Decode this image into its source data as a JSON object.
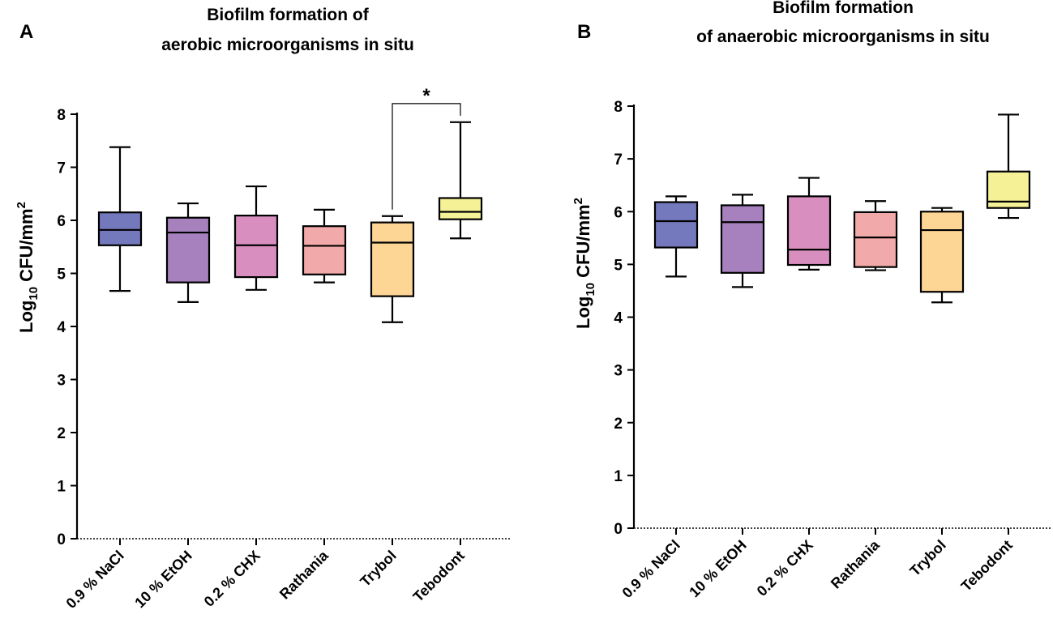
{
  "chart_data": [
    {
      "panel": "A",
      "type": "boxplot",
      "title": [
        "Biofilm formation of",
        "aerobic microorganisms in situ"
      ],
      "ylabel": {
        "main": "Log",
        "sub": "10",
        "rest": " CFU/mm",
        "sup": "2"
      },
      "ylim": [
        0,
        8
      ],
      "yticks": [
        0,
        1,
        2,
        3,
        4,
        5,
        6,
        7,
        8
      ],
      "categories": [
        "0.9 % NaCl",
        "10 % EtOH",
        "0.2 % CHX",
        "Rathania",
        "Trybol",
        "Tebodont"
      ],
      "colors": [
        "#7479bd",
        "#a681bd",
        "#d88fbf",
        "#f2a9a9",
        "#fdd595",
        "#f5f196"
      ],
      "boxes": [
        {
          "min": 4.67,
          "q1": 5.53,
          "median": 5.82,
          "q3": 6.15,
          "max": 7.38
        },
        {
          "min": 4.46,
          "q1": 4.83,
          "median": 5.77,
          "q3": 6.05,
          "max": 6.32
        },
        {
          "min": 4.69,
          "q1": 4.93,
          "median": 5.53,
          "q3": 6.09,
          "max": 6.64
        },
        {
          "min": 4.83,
          "q1": 4.98,
          "median": 5.52,
          "q3": 5.89,
          "max": 6.2
        },
        {
          "min": 4.08,
          "q1": 4.57,
          "median": 5.58,
          "q3": 5.96,
          "max": 6.08
        },
        {
          "min": 5.66,
          "q1": 6.02,
          "median": 6.16,
          "q3": 6.42,
          "max": 7.85
        }
      ],
      "significance": {
        "from": 4,
        "to": 5,
        "label": "*",
        "level": 8.2
      }
    },
    {
      "panel": "B",
      "type": "boxplot",
      "title": [
        "Biofilm formation",
        "of anaerobic microorganisms in situ"
      ],
      "ylabel": {
        "main": "Log",
        "sub": "10",
        "rest": " CFU/mm",
        "sup": "2"
      },
      "ylim": [
        0,
        8
      ],
      "yticks": [
        0,
        1,
        2,
        3,
        4,
        5,
        6,
        7,
        8
      ],
      "categories": [
        "0.9 % NaCl",
        "10 % EtOH",
        "0.2 % CHX",
        "Rathania",
        "Trybol",
        "Tebodont"
      ],
      "colors": [
        "#7479bd",
        "#a681bd",
        "#d88fbf",
        "#f2a9a9",
        "#fdd595",
        "#f5f196"
      ],
      "boxes": [
        {
          "min": 4.77,
          "q1": 5.32,
          "median": 5.82,
          "q3": 6.18,
          "max": 6.29
        },
        {
          "min": 4.57,
          "q1": 4.84,
          "median": 5.8,
          "q3": 6.12,
          "max": 6.32
        },
        {
          "min": 4.9,
          "q1": 4.99,
          "median": 5.28,
          "q3": 6.29,
          "max": 6.64
        },
        {
          "min": 4.89,
          "q1": 4.95,
          "median": 5.51,
          "q3": 5.99,
          "max": 6.2
        },
        {
          "min": 4.28,
          "q1": 4.48,
          "median": 5.65,
          "q3": 6.0,
          "max": 6.07
        },
        {
          "min": 5.88,
          "q1": 6.07,
          "median": 6.19,
          "q3": 6.76,
          "max": 7.84
        }
      ]
    }
  ]
}
